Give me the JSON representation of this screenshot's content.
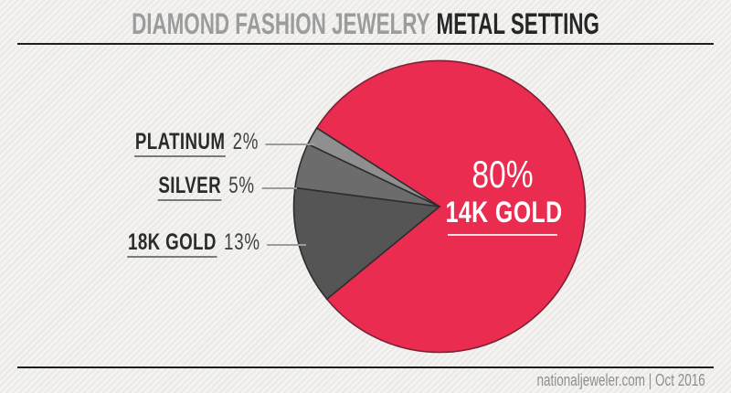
{
  "header": {
    "title_prefix": "DIAMOND FASHION JEWELRY",
    "title_emphasis": "METAL SETTING",
    "title_prefix_color": "#9C9C9C",
    "title_emphasis_color": "#262626"
  },
  "chart_data": {
    "type": "pie",
    "title": "Diamond Fashion Jewelry Metal Setting",
    "unit": "%",
    "categories": [
      "14K GOLD",
      "18K GOLD",
      "SILVER",
      "PLATINUM"
    ],
    "values": [
      80,
      13,
      5,
      2
    ],
    "start_angle_deg": 212.6,
    "direction": "clockwise",
    "segments": [
      {
        "label": "14K GOLD",
        "value": 80,
        "color": "#E92C4F",
        "stroke": "#7C2136"
      },
      {
        "label": "18K GOLD",
        "value": 13,
        "color": "#555555",
        "stroke": "#2D2D2D"
      },
      {
        "label": "SILVER",
        "value": 5,
        "color": "#6C6C6C",
        "stroke": "#2D2D2D"
      },
      {
        "label": "PLATINUM",
        "value": 2,
        "color": "#8F8F8F",
        "stroke": "#2D2D2D"
      }
    ],
    "center_label": {
      "value": "80%",
      "label": "14K GOLD"
    },
    "callouts": [
      {
        "label": "PLATINUM",
        "value": "2%"
      },
      {
        "label": "SILVER",
        "value": "5%"
      },
      {
        "label": "18K GOLD",
        "value": "13%"
      }
    ],
    "legend_position": "left-callouts",
    "grid": false
  },
  "footer": {
    "credit": "nationaljeweler.com | Oct 2016"
  },
  "palette": {
    "background_light": "#f4f3f1",
    "background_stripe": "#eae9e6",
    "rule_color": "#1E1E1E",
    "leader_line_color": "#9C9C9C",
    "callout_text_color": "#2B2B2B",
    "credit_color": "#8F8F8F"
  }
}
